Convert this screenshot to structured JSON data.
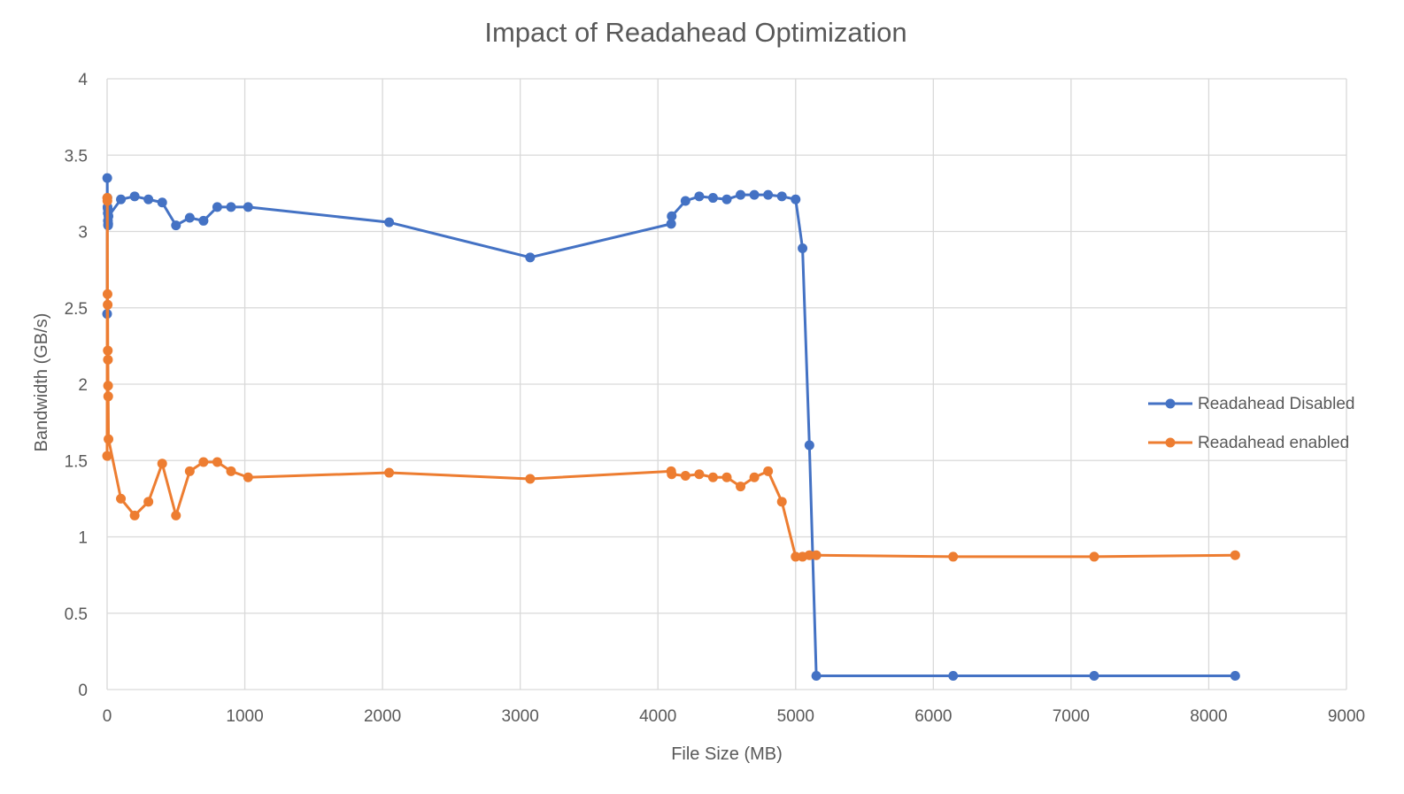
{
  "chart_data": {
    "type": "scatter",
    "title": "Impact of Readahead Optimization",
    "xlabel": "File Size (MB)",
    "ylabel": "Bandwidth (GB/s)",
    "xlim": [
      0,
      9000
    ],
    "ylim": [
      0,
      4
    ],
    "x_ticks": [
      "0",
      "1000",
      "2000",
      "3000",
      "4000",
      "5000",
      "6000",
      "7000",
      "8000",
      "9000"
    ],
    "y_ticks": [
      "0",
      "0.5",
      "1",
      "1.5",
      "2",
      "2.5",
      "3",
      "3.5",
      "4"
    ],
    "x_tick_values": [
      0,
      1000,
      2000,
      3000,
      4000,
      5000,
      6000,
      7000,
      8000,
      9000
    ],
    "y_tick_values": [
      0,
      0.5,
      1,
      1.5,
      2,
      2.5,
      3,
      3.5,
      4
    ],
    "grid": true,
    "legend_position": "right",
    "series": [
      {
        "name": "Readahead Disabled",
        "color": "#4472C4",
        "x": [
          0,
          1,
          2,
          3,
          4,
          5,
          6,
          7,
          8,
          10,
          100,
          200,
          300,
          400,
          500,
          600,
          700,
          800,
          900,
          1024,
          2048,
          3072,
          4096,
          4100,
          4200,
          4300,
          4400,
          4500,
          4600,
          4700,
          4800,
          4900,
          5000,
          5050,
          5100,
          5150,
          6144,
          7168,
          8192
        ],
        "y": [
          2.46,
          3.35,
          3.22,
          3.16,
          3.15,
          3.12,
          3.07,
          3.04,
          3.05,
          3.1,
          3.21,
          3.23,
          3.21,
          3.19,
          3.04,
          3.09,
          3.07,
          3.16,
          3.16,
          3.16,
          3.06,
          2.83,
          3.05,
          3.1,
          3.2,
          3.23,
          3.22,
          3.21,
          3.24,
          3.24,
          3.24,
          3.23,
          3.21,
          2.89,
          1.6,
          0.09,
          0.09,
          0.09,
          0.09
        ]
      },
      {
        "name": "Readahead enabled",
        "color": "#ED7D31",
        "x": [
          0,
          1,
          2,
          3,
          4,
          5,
          6,
          7,
          8,
          10,
          100,
          200,
          300,
          400,
          500,
          600,
          700,
          800,
          900,
          1024,
          2048,
          3072,
          4096,
          4100,
          4200,
          4300,
          4400,
          4500,
          4600,
          4700,
          4800,
          4900,
          5000,
          5050,
          5100,
          5150,
          6144,
          7168,
          8192
        ],
        "y": [
          1.53,
          3.22,
          3.2,
          2.59,
          2.52,
          2.22,
          2.16,
          1.99,
          1.92,
          1.64,
          1.25,
          1.14,
          1.23,
          1.48,
          1.14,
          1.43,
          1.49,
          1.49,
          1.43,
          1.39,
          1.42,
          1.38,
          1.43,
          1.41,
          1.4,
          1.41,
          1.39,
          1.39,
          1.33,
          1.39,
          1.43,
          1.23,
          0.87,
          0.87,
          0.88,
          0.88,
          0.87,
          0.87,
          0.88
        ]
      }
    ]
  }
}
